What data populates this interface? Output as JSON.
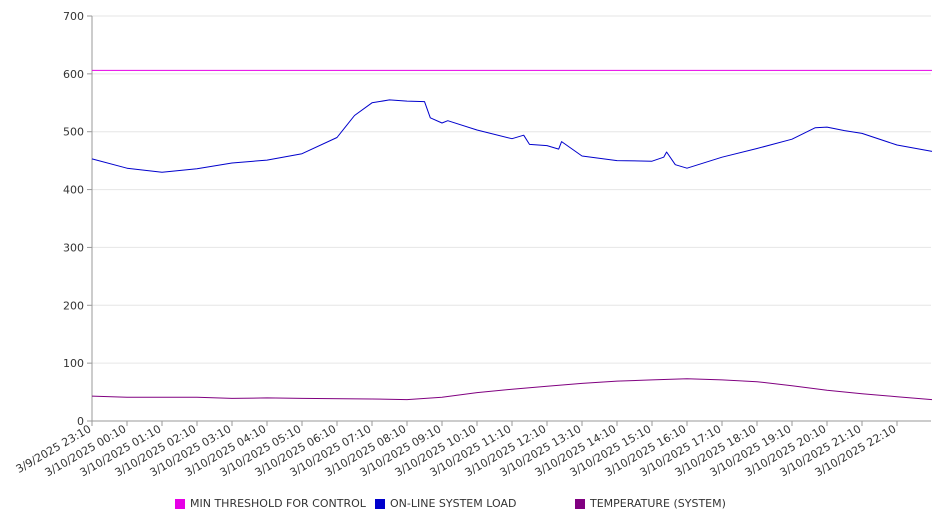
{
  "chart_data": {
    "type": "line",
    "ylim": [
      0,
      700
    ],
    "y_ticks": [
      0,
      100,
      200,
      300,
      400,
      500,
      600,
      700
    ],
    "x_ticks": [
      "3/9/2025 23:10",
      "3/10/2025 00:10",
      "3/10/2025 01:10",
      "3/10/2025 02:10",
      "3/10/2025 03:10",
      "3/10/2025 04:10",
      "3/10/2025 05:10",
      "3/10/2025 06:10",
      "3/10/2025 07:10",
      "3/10/2025 08:10",
      "3/10/2025 09:10",
      "3/10/2025 10:10",
      "3/10/2025 11:10",
      "3/10/2025 12:10",
      "3/10/2025 13:10",
      "3/10/2025 14:10",
      "3/10/2025 15:10",
      "3/10/2025 16:10",
      "3/10/2025 17:10",
      "3/10/2025 18:10",
      "3/10/2025 19:10",
      "3/10/2025 20:10",
      "3/10/2025 21:10",
      "3/10/2025 22:10"
    ],
    "grid": true,
    "legend_position": "bottom",
    "series": [
      {
        "name": "MIN THRESHOLD FOR CONTROL",
        "color": "#e600e6",
        "x": [
          "3/9/2025 23:10",
          "3/10/2025 23:10"
        ],
        "values": [
          606,
          606
        ]
      },
      {
        "name": "ON-LINE SYSTEM LOAD",
        "color": "#0000cc",
        "x": [
          "3/9/2025 23:10",
          "3/10/2025 00:10",
          "3/10/2025 01:10",
          "3/10/2025 02:10",
          "3/10/2025 03:10",
          "3/10/2025 04:10",
          "3/10/2025 05:10",
          "3/10/2025 06:10",
          "3/10/2025 06:40",
          "3/10/2025 07:10",
          "3/10/2025 07:40",
          "3/10/2025 08:10",
          "3/10/2025 08:40",
          "3/10/2025 08:50",
          "3/10/2025 09:10",
          "3/10/2025 09:20",
          "3/10/2025 10:10",
          "3/10/2025 11:10",
          "3/10/2025 11:30",
          "3/10/2025 11:40",
          "3/10/2025 12:10",
          "3/10/2025 12:30",
          "3/10/2025 12:35",
          "3/10/2025 13:10",
          "3/10/2025 14:10",
          "3/10/2025 15:10",
          "3/10/2025 15:30",
          "3/10/2025 15:35",
          "3/10/2025 15:50",
          "3/10/2025 16:10",
          "3/10/2025 17:10",
          "3/10/2025 18:10",
          "3/10/2025 19:10",
          "3/10/2025 19:50",
          "3/10/2025 20:10",
          "3/10/2025 20:40",
          "3/10/2025 21:10",
          "3/10/2025 22:10",
          "3/10/2025 23:10"
        ],
        "values": [
          453,
          437,
          430,
          436,
          446,
          451,
          462,
          490,
          528,
          550,
          555,
          553,
          552,
          524,
          515,
          519,
          503,
          488,
          494,
          478,
          476,
          470,
          483,
          458,
          450,
          449,
          456,
          465,
          443,
          437,
          456,
          471,
          487,
          507,
          508,
          502,
          497,
          477,
          466
        ]
      },
      {
        "name": "TEMPERATURE (SYSTEM)",
        "color": "#800080",
        "x": [
          "3/9/2025 23:10",
          "3/10/2025 00:10",
          "3/10/2025 02:10",
          "3/10/2025 03:10",
          "3/10/2025 04:10",
          "3/10/2025 05:10",
          "3/10/2025 07:10",
          "3/10/2025 08:10",
          "3/10/2025 09:10",
          "3/10/2025 10:10",
          "3/10/2025 11:10",
          "3/10/2025 12:10",
          "3/10/2025 13:10",
          "3/10/2025 14:10",
          "3/10/2025 15:10",
          "3/10/2025 16:10",
          "3/10/2025 17:10",
          "3/10/2025 18:10",
          "3/10/2025 19:10",
          "3/10/2025 20:10",
          "3/10/2025 21:10",
          "3/10/2025 22:10",
          "3/10/2025 23:10"
        ],
        "values": [
          43,
          41,
          41,
          39,
          40,
          39,
          38,
          37,
          41,
          49,
          55,
          60,
          65,
          69,
          71,
          73,
          71,
          68,
          61,
          53,
          47,
          42,
          37
        ]
      }
    ]
  }
}
